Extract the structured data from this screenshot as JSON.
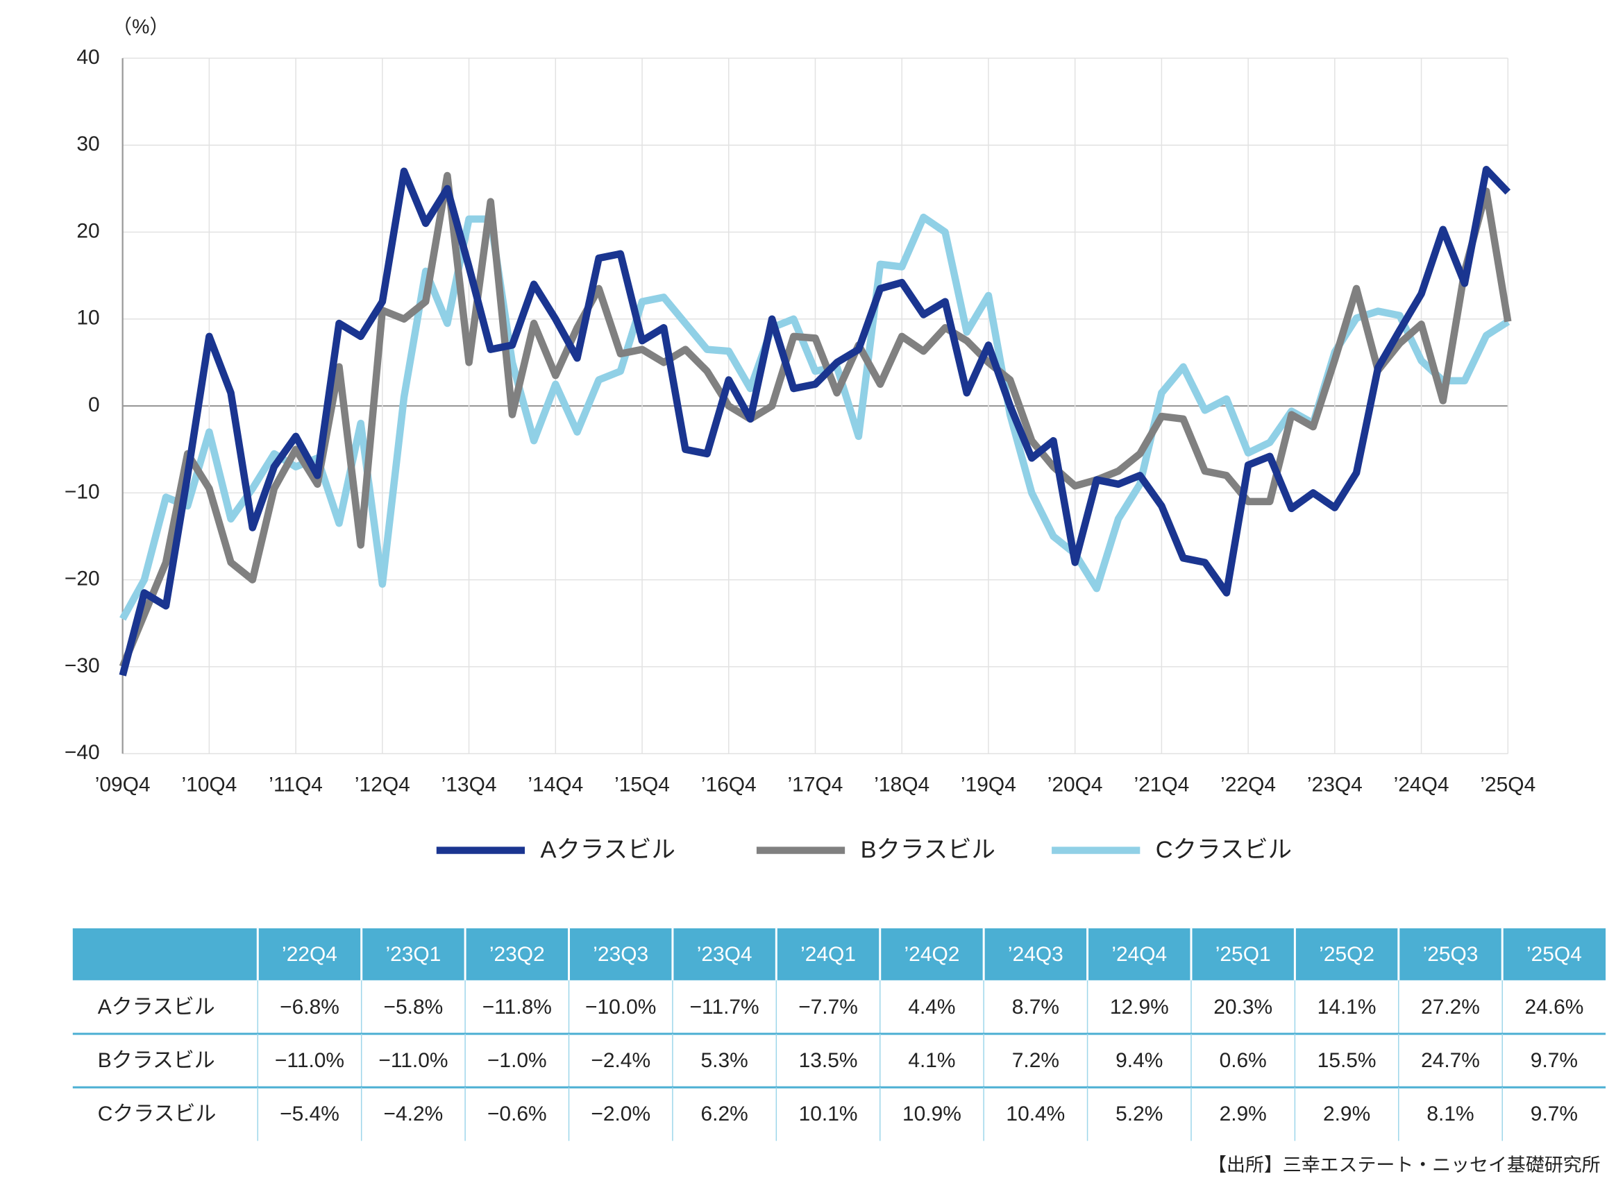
{
  "chart_data": {
    "type": "line",
    "unit_label": "（%）",
    "categories": [
      "’09Q4",
      null,
      null,
      null,
      "’10Q4",
      null,
      null,
      null,
      "’11Q4",
      null,
      null,
      null,
      "’12Q4",
      null,
      null,
      null,
      "’13Q4",
      null,
      null,
      null,
      "’14Q4",
      null,
      null,
      null,
      "’15Q4",
      null,
      null,
      null,
      "’16Q4",
      null,
      null,
      null,
      "’17Q4",
      null,
      null,
      null,
      "’18Q4",
      null,
      null,
      null,
      "’19Q4",
      null,
      null,
      null,
      "’20Q4",
      null,
      null,
      null,
      "’21Q4",
      null,
      null,
      null,
      "’22Q4",
      null,
      null,
      null,
      "’23Q4",
      null,
      null,
      null,
      "’24Q4",
      null,
      null,
      null,
      "’25Q4"
    ],
    "series": [
      {
        "name": "Aクラスビル",
        "color": "#1a3590",
        "values": [
          -31,
          -21.5,
          -23,
          -8,
          8,
          1.5,
          -14,
          -7,
          -3.5,
          -8,
          9.5,
          8,
          12,
          27,
          21,
          25,
          16,
          6.5,
          7,
          14,
          10,
          5.5,
          17,
          17.5,
          7.5,
          9,
          -5,
          -5.5,
          3,
          -1.5,
          10,
          2,
          2.5,
          5,
          6.5,
          13.5,
          14.2,
          10.5,
          12,
          1.5,
          7,
          0,
          -6,
          -4,
          -18,
          -8.5,
          -9,
          -8,
          -11.5,
          -17.5,
          -18,
          -21.5,
          -6.8,
          -5.8,
          -11.8,
          -10.0,
          -11.7,
          -7.7,
          4.4,
          8.7,
          12.9,
          20.3,
          14.1,
          27.2,
          24.6
        ]
      },
      {
        "name": "Bクラスビル",
        "color": "#808080",
        "values": [
          -30,
          -24,
          -18,
          -5.5,
          -9.5,
          -18,
          -20,
          -9.5,
          -5,
          -9,
          4.5,
          -16,
          11,
          10,
          12,
          26.5,
          5,
          23.5,
          -1,
          9.5,
          3.5,
          9,
          13.5,
          6,
          6.5,
          5,
          6.5,
          4,
          0,
          -1.5,
          0,
          8,
          7.8,
          1.5,
          7,
          2.5,
          8,
          6.3,
          9,
          7.5,
          5,
          3,
          -4,
          -7,
          -9.2,
          -8.5,
          -7.5,
          -5.5,
          -1.2,
          -1.5,
          -7.5,
          -8,
          -11.0,
          -11.0,
          -1.0,
          -2.4,
          5.3,
          13.5,
          4.1,
          7.2,
          9.4,
          0.6,
          15.5,
          24.7,
          9.7
        ]
      },
      {
        "name": "Cクラスビル",
        "color": "#90d0e6",
        "values": [
          -24.5,
          -20,
          -10.5,
          -11.5,
          -3,
          -13,
          -9.5,
          -5.5,
          -7,
          -6,
          -13.5,
          -2,
          -20.5,
          1,
          15.5,
          9.5,
          21.5,
          21.5,
          5,
          -4,
          2.5,
          -3,
          3,
          4,
          12,
          12.5,
          9.5,
          6.5,
          6.3,
          2,
          9,
          10,
          4,
          4.5,
          -3.5,
          16.3,
          16,
          21.7,
          20,
          8.5,
          12.7,
          -1,
          -10,
          -15,
          -17,
          -21,
          -13,
          -9,
          1.5,
          4.5,
          -0.5,
          0.8,
          -5.4,
          -4.2,
          -0.6,
          -2.0,
          6.2,
          10.1,
          10.9,
          10.4,
          5.2,
          2.9,
          2.9,
          8.1,
          9.7
        ]
      }
    ],
    "ylim": [
      -40,
      40
    ],
    "yticks": [
      {
        "value": -40,
        "label": "−40"
      },
      {
        "value": -30,
        "label": "−30"
      },
      {
        "value": -20,
        "label": "−20"
      },
      {
        "value": -10,
        "label": "−10"
      },
      0,
      10,
      20,
      30,
      40
    ],
    "grid": true,
    "legend": "bottom"
  },
  "table": {
    "header": [
      "’22Q4",
      "’23Q1",
      "’23Q2",
      "’23Q3",
      "’23Q4",
      "’24Q1",
      "’24Q2",
      "’24Q3",
      "’24Q4",
      "’25Q1",
      "’25Q2",
      "’25Q3",
      "’25Q4"
    ],
    "rows": [
      [
        "Aクラスビル",
        "−6.8%",
        "−5.8%",
        "−11.8%",
        "−10.0%",
        "−11.7%",
        "−7.7%",
        "4.4%",
        "8.7%",
        "12.9%",
        "20.3%",
        "14.1%",
        "27.2%",
        "24.6%"
      ],
      [
        "Bクラスビル",
        "−11.0%",
        "−11.0%",
        "−1.0%",
        "−2.4%",
        "5.3%",
        "13.5%",
        "4.1%",
        "7.2%",
        "9.4%",
        "0.6%",
        "15.5%",
        "24.7%",
        "9.7%"
      ],
      [
        "Cクラスビル",
        "−5.4%",
        "−4.2%",
        "−0.6%",
        "−2.0%",
        "6.2%",
        "10.1%",
        "10.9%",
        "10.4%",
        "5.2%",
        "2.9%",
        "2.9%",
        "8.1%",
        "9.7%"
      ]
    ]
  },
  "source": "【出所】三幸エステート・ニッセイ基礎研究所"
}
